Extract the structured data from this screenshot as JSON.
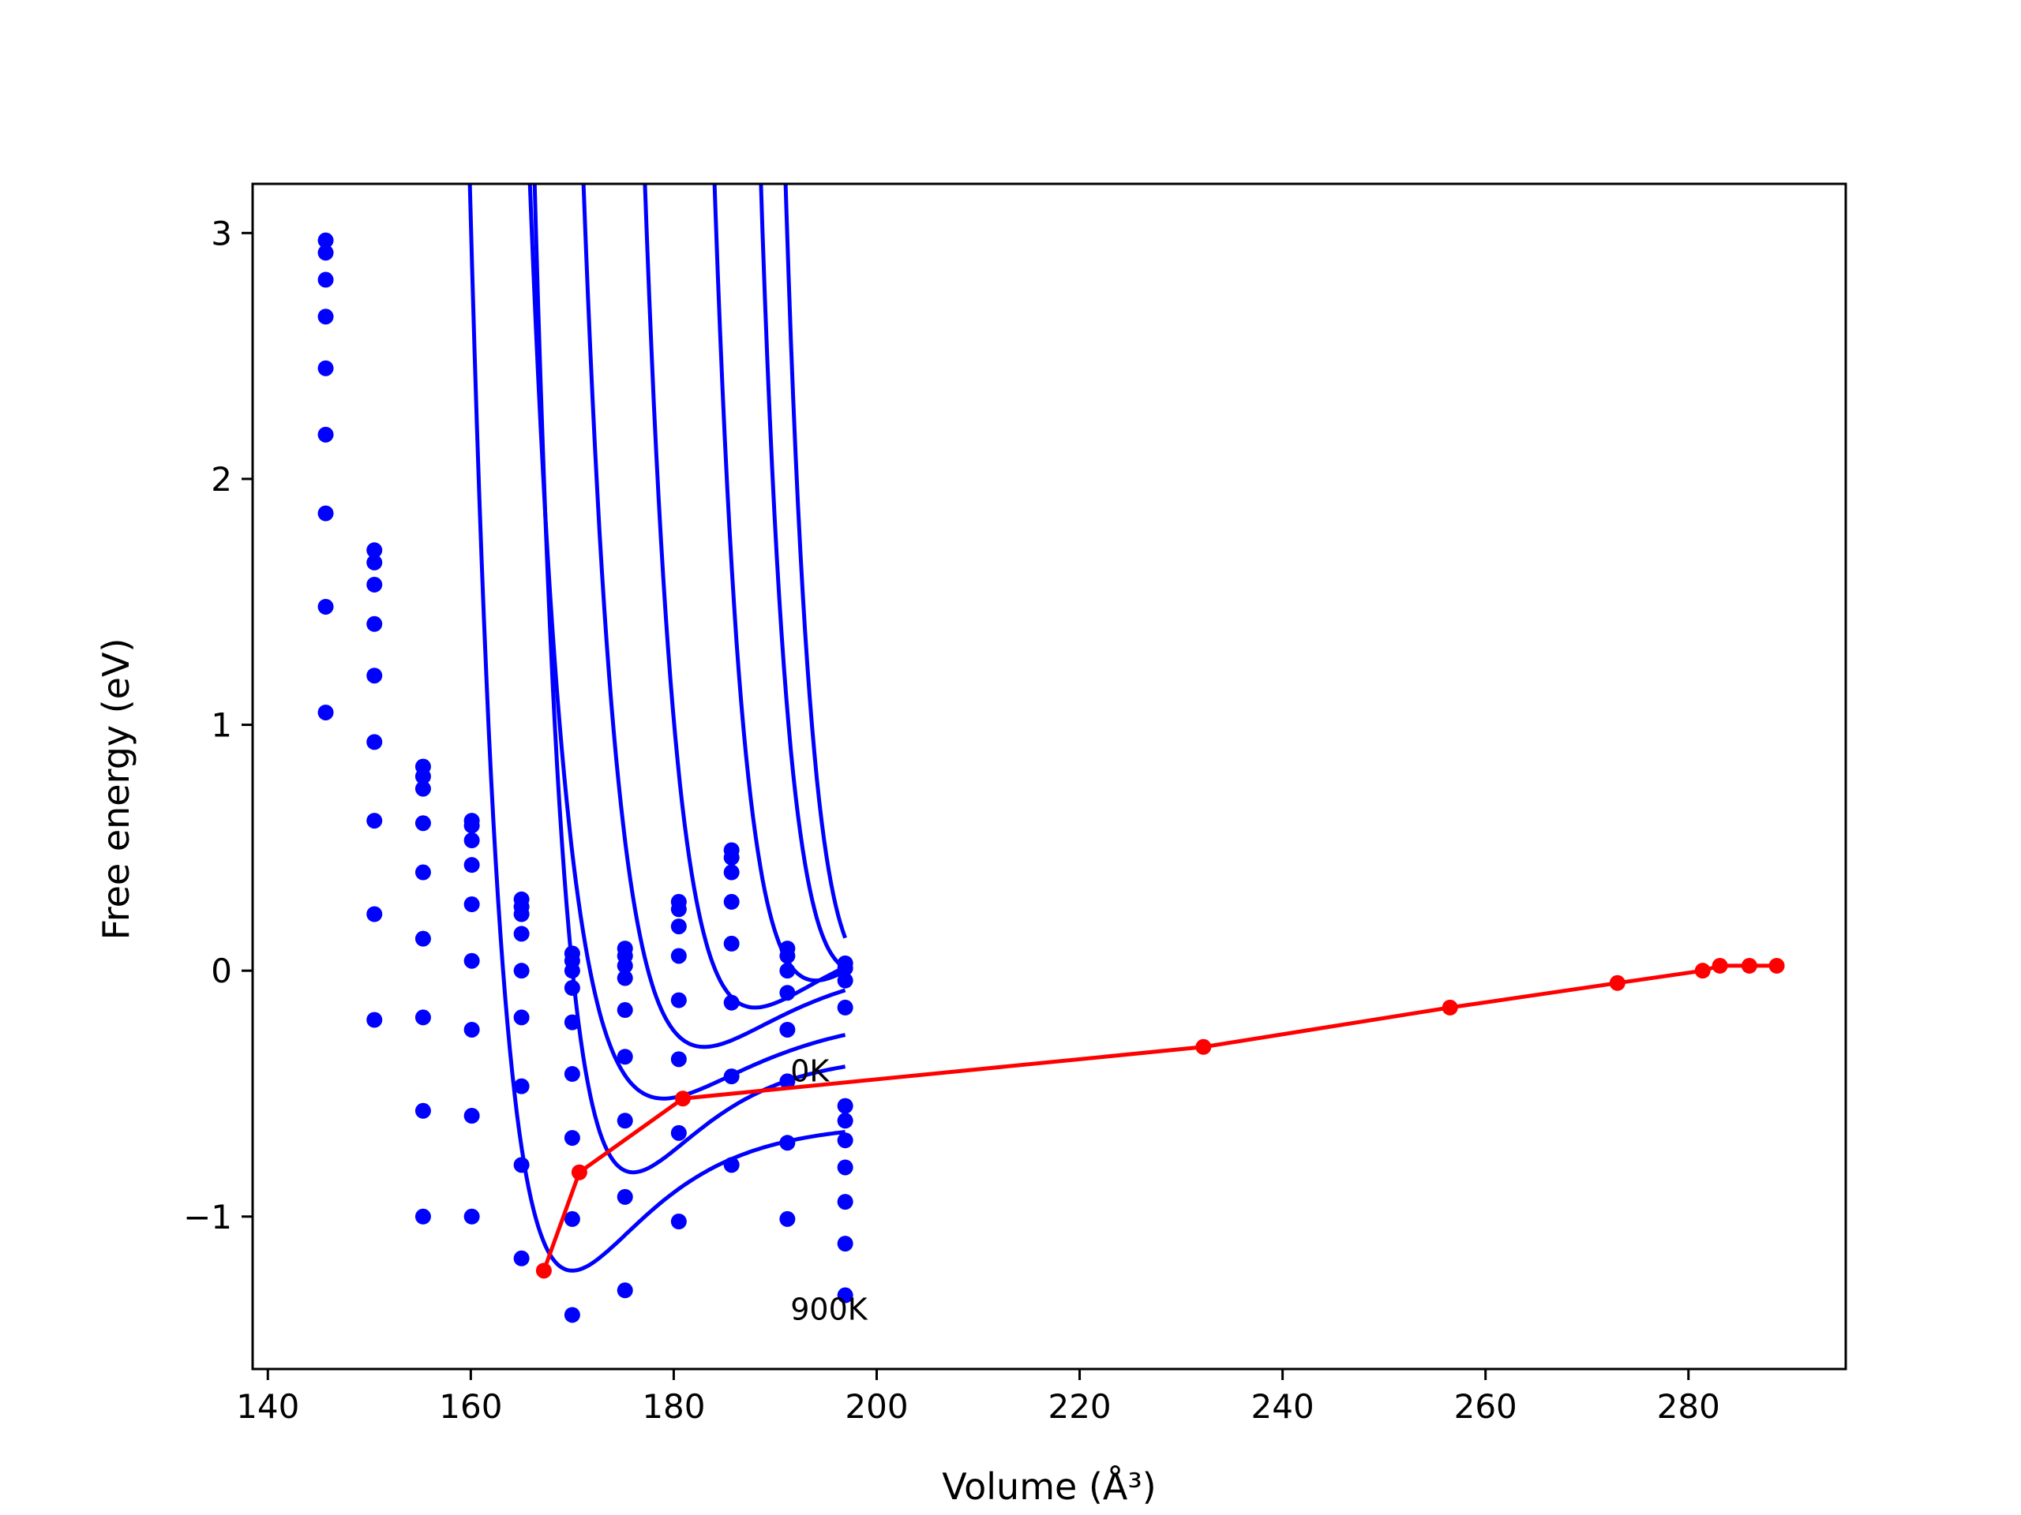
{
  "chart_data": {
    "type": "line",
    "title": "",
    "xlabel": "Volume (Å³)",
    "ylabel": "Free energy (eV)",
    "xlim": [
      138.5,
      295.5
    ],
    "ylim": [
      -1.62,
      3.2
    ],
    "grid": false,
    "legend": "none",
    "xticks": [
      140,
      160,
      180,
      200,
      220,
      240,
      260,
      280
    ],
    "xtick_labels": [
      "140",
      "160",
      "180",
      "200",
      "220",
      "240",
      "260",
      "280"
    ],
    "yticks": [
      -1,
      0,
      1,
      2,
      3
    ],
    "ytick_labels": [
      "−1",
      "0",
      "1",
      "2",
      "3"
    ],
    "annotations": [
      {
        "text": "0K",
        "x": 191.5,
        "y": -0.45
      },
      {
        "text": "900K",
        "x": 191.5,
        "y": -1.42
      }
    ],
    "colors": {
      "isotherms": "#0000ff",
      "minimum_path": "#ff0000"
    },
    "sample_volumes": [
      145.7,
      150.5,
      155.3,
      160.1,
      165.0,
      170.0,
      175.2,
      180.5,
      185.7,
      191.2,
      196.9
    ],
    "isotherm_fits": [
      {
        "E0": 0.0,
        "B": 0.35,
        "V0": 200,
        "k": 0.155
      },
      {
        "E0": 0.0,
        "B": 0.35,
        "V0": 198,
        "k": 0.148
      },
      {
        "E0": -0.04,
        "B": 0.35,
        "V0": 194,
        "k": 0.14
      },
      {
        "E0": -0.15,
        "B": 0.35,
        "V0": 188,
        "k": 0.13
      },
      {
        "E0": -0.31,
        "B": 0.35,
        "V0": 183,
        "k": 0.12
      },
      {
        "E0": -0.52,
        "B": 0.35,
        "V0": 179,
        "k": 0.11
      },
      {
        "E0": -0.82,
        "B": 0.48,
        "V0": 176,
        "k": 0.14
      },
      {
        "E0": -1.22,
        "B": 0.6,
        "V0": 170,
        "k": 0.13
      }
    ],
    "scatter_series": [
      {
        "values": [
          2.97,
          1.71,
          0.83,
          0.61,
          0.29,
          0.07,
          0.09,
          0.28,
          0.49,
          0.09,
          0.03
        ]
      },
      {
        "values": [
          2.92,
          1.66,
          0.79,
          0.59,
          0.26,
          0.04,
          0.06,
          0.25,
          0.46,
          0.06,
          0.01
        ]
      },
      {
        "values": [
          2.81,
          1.57,
          0.74,
          0.53,
          0.23,
          0.0,
          0.02,
          0.18,
          0.4,
          0.0,
          -0.04
        ]
      },
      {
        "values": [
          2.66,
          1.41,
          0.6,
          0.43,
          0.15,
          -0.07,
          -0.03,
          0.06,
          0.28,
          -0.09,
          -0.15
        ]
      },
      {
        "values": [
          2.45,
          1.2,
          0.4,
          0.27,
          0.0,
          -0.21,
          -0.16,
          -0.12,
          0.11,
          -0.24,
          -0.55
        ]
      },
      {
        "values": [
          2.18,
          0.93,
          0.13,
          0.04,
          -0.19,
          -0.42,
          -0.35,
          -0.36,
          -0.13,
          -0.45,
          -0.61
        ]
      },
      {
        "values": [
          1.86,
          0.61,
          -0.19,
          -0.24,
          -0.47,
          -0.68,
          -0.61,
          -0.66,
          -0.43,
          -0.7,
          -0.69
        ]
      },
      {
        "values": [
          1.48,
          0.23,
          -0.57,
          -0.59,
          -0.79,
          -1.01,
          -0.92,
          -1.02,
          -0.79,
          -1.01,
          -0.8
        ]
      },
      {
        "values": [
          1.05,
          -0.2,
          -1.0,
          -1.0,
          -1.17,
          -1.4,
          -1.3,
          null,
          null,
          null,
          -0.94
        ]
      },
      {
        "values": [
          null,
          null,
          null,
          null,
          null,
          null,
          null,
          null,
          null,
          null,
          -1.11
        ]
      },
      {
        "values": [
          null,
          null,
          null,
          null,
          null,
          null,
          null,
          null,
          null,
          null,
          -1.32
        ]
      }
    ],
    "minimum_path": {
      "x": [
        167.2,
        170.7,
        180.9,
        232.2,
        256.5,
        273.0,
        281.4,
        283.1,
        286.0,
        288.7
      ],
      "y": [
        -1.22,
        -0.82,
        -0.52,
        -0.31,
        -0.15,
        -0.05,
        0.0,
        0.02,
        0.02,
        0.02
      ]
    }
  }
}
